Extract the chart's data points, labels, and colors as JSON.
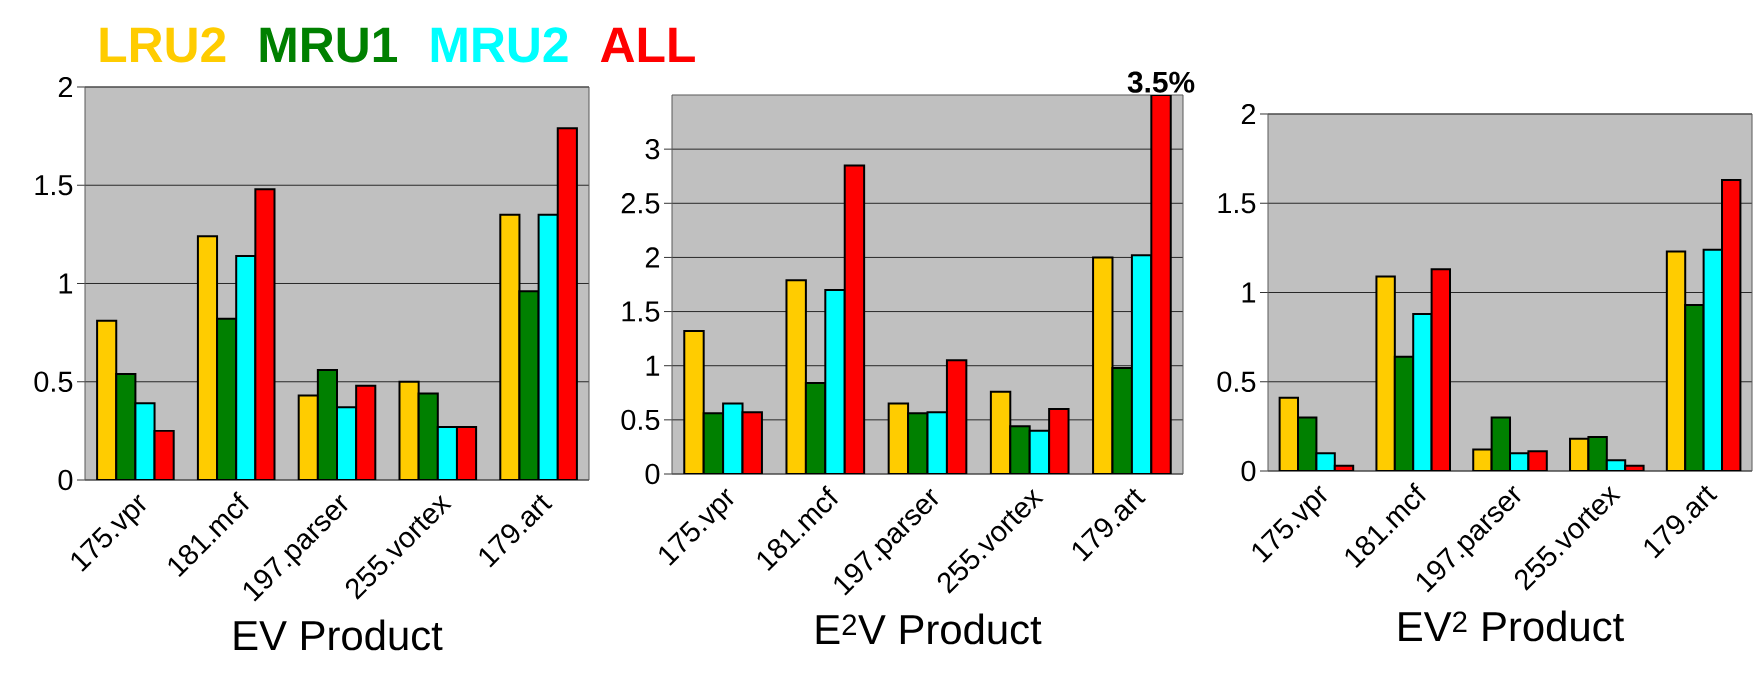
{
  "chart_data": [
    {
      "type": "bar",
      "xlabel": "EV Product",
      "categories": [
        "175.vpr",
        "181.mcf",
        "197.parser",
        "255.vortex",
        "179.art"
      ],
      "ylim": [
        0,
        2
      ],
      "yticks": [
        0,
        0.5,
        1,
        1.5,
        2
      ],
      "grid": "y",
      "legend": "top",
      "series": [
        {
          "name": "LRU2",
          "color": "#ffcc00",
          "values": [
            0.81,
            1.24,
            0.43,
            0.5,
            1.35
          ]
        },
        {
          "name": "MRU1",
          "color": "#008000",
          "values": [
            0.54,
            0.82,
            0.56,
            0.44,
            0.96
          ]
        },
        {
          "name": "MRU2",
          "color": "#00ffff",
          "values": [
            0.39,
            1.14,
            0.37,
            0.27,
            1.35
          ]
        },
        {
          "name": "ALL",
          "color": "#ff0000",
          "values": [
            0.25,
            1.48,
            0.48,
            0.27,
            1.79
          ]
        }
      ]
    },
    {
      "type": "bar",
      "xlabel": "E$^{2}$V Product",
      "categories": [
        "175.vpr",
        "181.mcf",
        "197.parser",
        "255.vortex",
        "179.art"
      ],
      "ylim": [
        0,
        3.5
      ],
      "yticks": [
        0,
        0.5,
        1,
        1.5,
        2,
        2.5,
        3
      ],
      "grid": "y",
      "series": [
        {
          "color": "#ffcc00",
          "values": [
            1.32,
            1.79,
            0.65,
            0.76,
            2.0
          ]
        },
        {
          "color": "#008000",
          "values": [
            0.56,
            0.84,
            0.56,
            0.44,
            0.98
          ]
        },
        {
          "color": "#00ffff",
          "values": [
            0.65,
            1.7,
            0.57,
            0.4,
            2.02
          ]
        },
        {
          "color": "#ff0000",
          "values": [
            0.57,
            2.85,
            1.05,
            0.6,
            3.5
          ],
          "value_labels": [
            null,
            null,
            null,
            null,
            "3.5%"
          ]
        }
      ]
    },
    {
      "type": "bar",
      "xlabel": "EV$^{2}$ Product",
      "categories": [
        "175.vpr",
        "181.mcf",
        "197.parser",
        "255.vortex",
        "179.art"
      ],
      "ylim": [
        0,
        2
      ],
      "yticks": [
        0,
        0.5,
        1,
        1.5,
        2
      ],
      "grid": "y",
      "series": [
        {
          "color": "#ffcc00",
          "values": [
            0.41,
            1.09,
            0.12,
            0.18,
            1.23
          ]
        },
        {
          "color": "#008000",
          "values": [
            0.3,
            0.64,
            0.3,
            0.19,
            0.93
          ]
        },
        {
          "color": "#00ffff",
          "values": [
            0.1,
            0.88,
            0.1,
            0.06,
            1.24
          ]
        },
        {
          "color": "#ff0000",
          "values": [
            0.03,
            1.13,
            0.11,
            0.03,
            1.63
          ]
        }
      ]
    }
  ]
}
